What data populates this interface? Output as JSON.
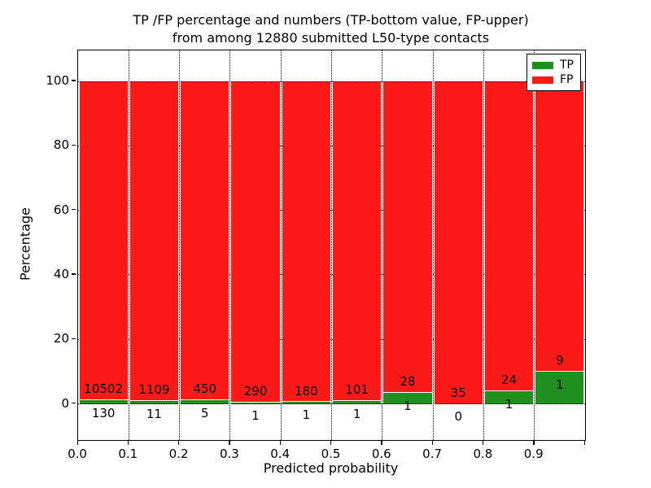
{
  "chart_data": {
    "type": "bar",
    "stacked": true,
    "title_line1": "TP /FP percentage and numbers (TP-bottom value, FP-upper)",
    "title_line2": "from among 12880 submitted L50-type contacts",
    "xlabel": "Predicted probability",
    "ylabel": "Percentage",
    "total_submitted": 12880,
    "bin_width": 0.1,
    "bin_starts": [
      0.0,
      0.1,
      0.2,
      0.3,
      0.4,
      0.5,
      0.6,
      0.7,
      0.8,
      0.9
    ],
    "x_tick_labels": [
      "0.0",
      "0.1",
      "0.2",
      "0.3",
      "0.4",
      "0.5",
      "0.6",
      "0.7",
      "0.8",
      "0.9"
    ],
    "y_ticks": [
      0,
      20,
      40,
      60,
      80,
      100
    ],
    "y_tick_labels": [
      "0",
      "20",
      "40",
      "60",
      "80",
      "100"
    ],
    "xlim": [
      0.0,
      1.0
    ],
    "ylim": [
      -11.2,
      109.6
    ],
    "grid_style": "dotted",
    "bar_unit": "percentage of bin total (bars sum to 100%)",
    "series": [
      {
        "name": "TP",
        "color": "#1f8f1f",
        "counts": [
          130,
          11,
          5,
          1,
          1,
          1,
          1,
          0,
          1,
          1
        ]
      },
      {
        "name": "FP",
        "color": "#fb1a17",
        "counts": [
          10502,
          1109,
          450,
          290,
          180,
          101,
          28,
          35,
          24,
          9
        ]
      }
    ],
    "legend": {
      "position": "upper right",
      "entries": [
        "TP",
        "FP"
      ]
    },
    "annotation_note": "FP count printed above green segment, TP count printed below it"
  }
}
